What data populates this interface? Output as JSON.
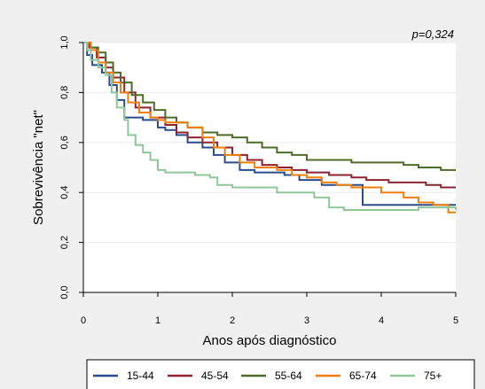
{
  "chart_data": {
    "type": "line",
    "annotation": "p=0,324",
    "xlabel": "Anos após diagnóstico",
    "ylabel": "Sobrevivência \"net\"",
    "xlim": [
      0,
      5
    ],
    "ylim": [
      0,
      1
    ],
    "x_ticks": [
      "0",
      "1",
      "2",
      "3",
      "4",
      "5"
    ],
    "y_ticks": [
      "0,0",
      "0,2",
      "0,4",
      "0,6",
      "0,8",
      "1,0"
    ],
    "grid": "horizontal",
    "legend_position": "bottom",
    "series": [
      {
        "name": "15-44",
        "color": "#2b4c8c",
        "points": [
          [
            0,
            1.0
          ],
          [
            0.05,
            0.95
          ],
          [
            0.12,
            0.91
          ],
          [
            0.25,
            0.88
          ],
          [
            0.35,
            0.83
          ],
          [
            0.45,
            0.77
          ],
          [
            0.55,
            0.7
          ],
          [
            0.7,
            0.7
          ],
          [
            0.8,
            0.69
          ],
          [
            1.0,
            0.66
          ],
          [
            1.1,
            0.65
          ],
          [
            1.25,
            0.63
          ],
          [
            1.4,
            0.6
          ],
          [
            1.6,
            0.58
          ],
          [
            1.75,
            0.55
          ],
          [
            1.9,
            0.52
          ],
          [
            2.1,
            0.49
          ],
          [
            2.3,
            0.48
          ],
          [
            2.5,
            0.48
          ],
          [
            2.7,
            0.47
          ],
          [
            2.9,
            0.45
          ],
          [
            3.0,
            0.45
          ],
          [
            3.2,
            0.43
          ],
          [
            3.6,
            0.43
          ],
          [
            3.75,
            0.35
          ],
          [
            4.2,
            0.35
          ],
          [
            4.5,
            0.35
          ],
          [
            5,
            0.35
          ]
        ]
      },
      {
        "name": "45-54",
        "color": "#8b2332",
        "points": [
          [
            0,
            1.0
          ],
          [
            0.08,
            0.98
          ],
          [
            0.18,
            0.94
          ],
          [
            0.3,
            0.9
          ],
          [
            0.4,
            0.86
          ],
          [
            0.55,
            0.8
          ],
          [
            0.7,
            0.74
          ],
          [
            0.9,
            0.7
          ],
          [
            1.1,
            0.67
          ],
          [
            1.25,
            0.64
          ],
          [
            1.4,
            0.62
          ],
          [
            1.6,
            0.6
          ],
          [
            1.8,
            0.58
          ],
          [
            2.0,
            0.55
          ],
          [
            2.2,
            0.53
          ],
          [
            2.4,
            0.51
          ],
          [
            2.6,
            0.5
          ],
          [
            2.8,
            0.49
          ],
          [
            3.0,
            0.48
          ],
          [
            3.3,
            0.47
          ],
          [
            3.6,
            0.46
          ],
          [
            3.8,
            0.45
          ],
          [
            4.1,
            0.44
          ],
          [
            4.3,
            0.44
          ],
          [
            4.6,
            0.43
          ],
          [
            4.8,
            0.42
          ],
          [
            5,
            0.42
          ]
        ]
      },
      {
        "name": "55-64",
        "color": "#4f6b2a",
        "points": [
          [
            0,
            1.0
          ],
          [
            0.1,
            0.98
          ],
          [
            0.2,
            0.96
          ],
          [
            0.3,
            0.92
          ],
          [
            0.4,
            0.88
          ],
          [
            0.5,
            0.84
          ],
          [
            0.65,
            0.79
          ],
          [
            0.8,
            0.76
          ],
          [
            0.95,
            0.73
          ],
          [
            1.1,
            0.7
          ],
          [
            1.25,
            0.68
          ],
          [
            1.4,
            0.66
          ],
          [
            1.6,
            0.64
          ],
          [
            1.8,
            0.63
          ],
          [
            2.0,
            0.62
          ],
          [
            2.2,
            0.6
          ],
          [
            2.4,
            0.58
          ],
          [
            2.6,
            0.56
          ],
          [
            2.8,
            0.55
          ],
          [
            3.0,
            0.53
          ],
          [
            3.3,
            0.53
          ],
          [
            3.6,
            0.52
          ],
          [
            4.0,
            0.52
          ],
          [
            4.3,
            0.51
          ],
          [
            4.5,
            0.5
          ],
          [
            4.7,
            0.5
          ],
          [
            4.8,
            0.49
          ],
          [
            5,
            0.49
          ]
        ]
      },
      {
        "name": "65-74",
        "color": "#f07f0a",
        "points": [
          [
            0,
            1.0
          ],
          [
            0.1,
            0.97
          ],
          [
            0.2,
            0.92
          ],
          [
            0.3,
            0.88
          ],
          [
            0.4,
            0.84
          ],
          [
            0.5,
            0.8
          ],
          [
            0.6,
            0.76
          ],
          [
            0.75,
            0.72
          ],
          [
            0.9,
            0.7
          ],
          [
            1.0,
            0.69
          ],
          [
            1.1,
            0.68
          ],
          [
            1.3,
            0.68
          ],
          [
            1.4,
            0.66
          ],
          [
            1.6,
            0.62
          ],
          [
            1.75,
            0.58
          ],
          [
            1.9,
            0.55
          ],
          [
            2.1,
            0.52
          ],
          [
            2.3,
            0.5
          ],
          [
            2.6,
            0.49
          ],
          [
            2.8,
            0.47
          ],
          [
            3.0,
            0.46
          ],
          [
            3.2,
            0.44
          ],
          [
            3.4,
            0.43
          ],
          [
            3.6,
            0.42
          ],
          [
            3.8,
            0.42
          ],
          [
            4.0,
            0.4
          ],
          [
            4.3,
            0.38
          ],
          [
            4.5,
            0.36
          ],
          [
            4.7,
            0.35
          ],
          [
            4.9,
            0.32
          ],
          [
            5,
            0.32
          ]
        ]
      },
      {
        "name": "75+",
        "color": "#8fc79b",
        "points": [
          [
            0,
            1.0
          ],
          [
            0.05,
            0.97
          ],
          [
            0.1,
            0.93
          ],
          [
            0.2,
            0.9
          ],
          [
            0.3,
            0.87
          ],
          [
            0.38,
            0.8
          ],
          [
            0.45,
            0.74
          ],
          [
            0.55,
            0.69
          ],
          [
            0.6,
            0.63
          ],
          [
            0.7,
            0.59
          ],
          [
            0.8,
            0.56
          ],
          [
            0.9,
            0.53
          ],
          [
            1.0,
            0.49
          ],
          [
            1.1,
            0.48
          ],
          [
            1.3,
            0.48
          ],
          [
            1.5,
            0.47
          ],
          [
            1.7,
            0.46
          ],
          [
            1.8,
            0.43
          ],
          [
            2.0,
            0.42
          ],
          [
            2.5,
            0.42
          ],
          [
            2.6,
            0.4
          ],
          [
            3.0,
            0.4
          ],
          [
            3.1,
            0.38
          ],
          [
            3.3,
            0.34
          ],
          [
            3.5,
            0.33
          ],
          [
            4.0,
            0.33
          ],
          [
            4.5,
            0.34
          ],
          [
            4.8,
            0.34
          ],
          [
            5,
            0.33
          ]
        ]
      }
    ]
  }
}
